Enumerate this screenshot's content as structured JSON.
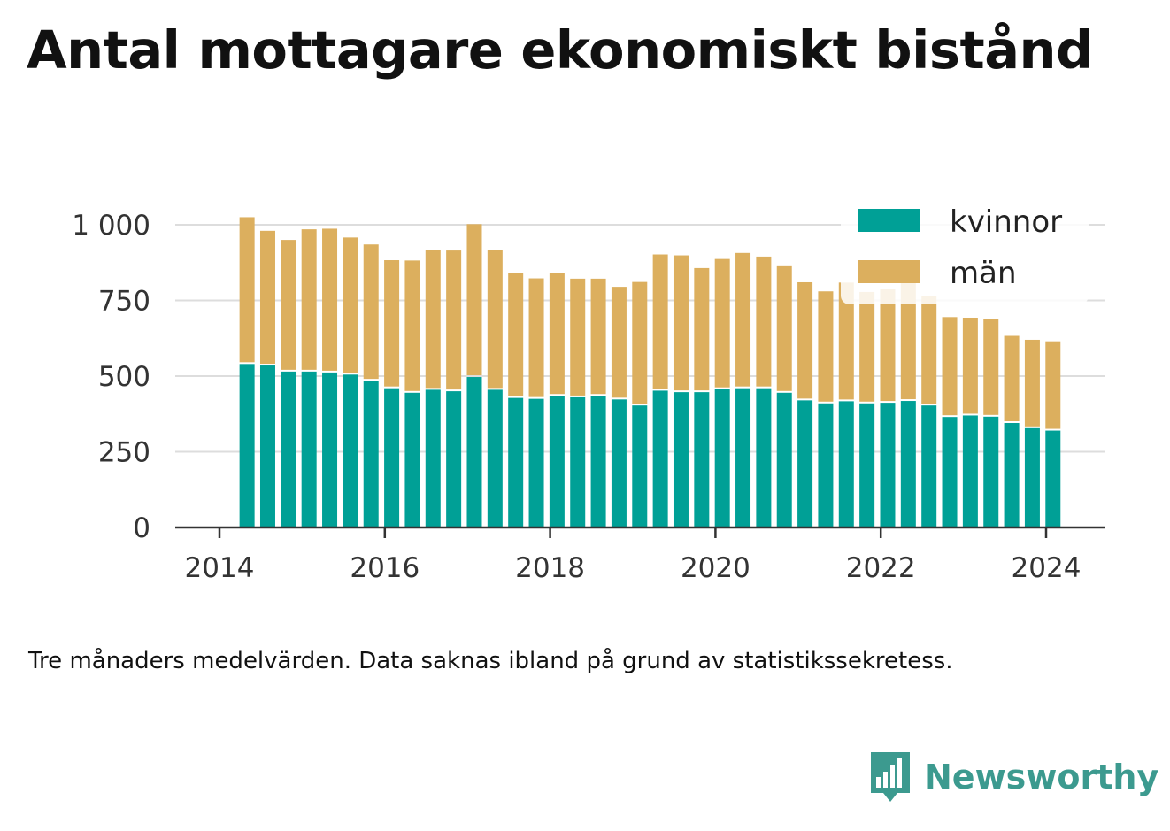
{
  "title": "Antal mottagare ekonomiskt bistånd",
  "caption": "Tre månaders medelvärden. Data saknas ibland på grund av statistikssekretess.",
  "brand": {
    "name": "Newsworthy",
    "color": "#3c9a8f",
    "icon": "bar-chart-speech-bubble-icon"
  },
  "chart_data": {
    "type": "bar",
    "stacked": true,
    "x_ticks": [
      "2014",
      "2016",
      "2018",
      "2020",
      "2022",
      "2024"
    ],
    "y_ticks": [
      "0",
      "250",
      "500",
      "750",
      "1 000"
    ],
    "ylim": [
      0,
      1000
    ],
    "grid": true,
    "legend_position": "top-right",
    "x": [
      "2014-05",
      "2014-08",
      "2014-11",
      "2015-02",
      "2015-05",
      "2015-08",
      "2015-11",
      "2016-02",
      "2016-05",
      "2016-08",
      "2016-11",
      "2017-02",
      "2017-05",
      "2017-08",
      "2017-11",
      "2018-02",
      "2018-05",
      "2018-08",
      "2018-11",
      "2019-02",
      "2019-05",
      "2019-08",
      "2019-11",
      "2020-02",
      "2020-05",
      "2020-08",
      "2020-11",
      "2021-02",
      "2021-05",
      "2021-08",
      "2021-11",
      "2022-02",
      "2022-05",
      "2022-08",
      "2022-11",
      "2023-02",
      "2023-05",
      "2023-08",
      "2023-11",
      "2024-02"
    ],
    "series": [
      {
        "name": "kvinnor",
        "color": "#00a096",
        "values": [
          540,
          535,
          515,
          515,
          512,
          505,
          485,
          460,
          445,
          455,
          450,
          497,
          455,
          428,
          425,
          435,
          430,
          435,
          423,
          403,
          452,
          447,
          447,
          457,
          460,
          460,
          445,
          420,
          410,
          417,
          410,
          412,
          418,
          403,
          365,
          370,
          366,
          345,
          328,
          320
        ]
      },
      {
        "name": "män",
        "color": "#dcaf5e",
        "values": [
          485,
          445,
          435,
          470,
          475,
          453,
          450,
          423,
          437,
          462,
          465,
          505,
          462,
          412,
          398,
          405,
          392,
          387,
          372,
          408,
          450,
          452,
          410,
          430,
          447,
          435,
          418,
          390,
          370,
          392,
          368,
          375,
          390,
          362,
          330,
          323,
          322,
          288,
          292,
          295
        ]
      }
    ]
  }
}
